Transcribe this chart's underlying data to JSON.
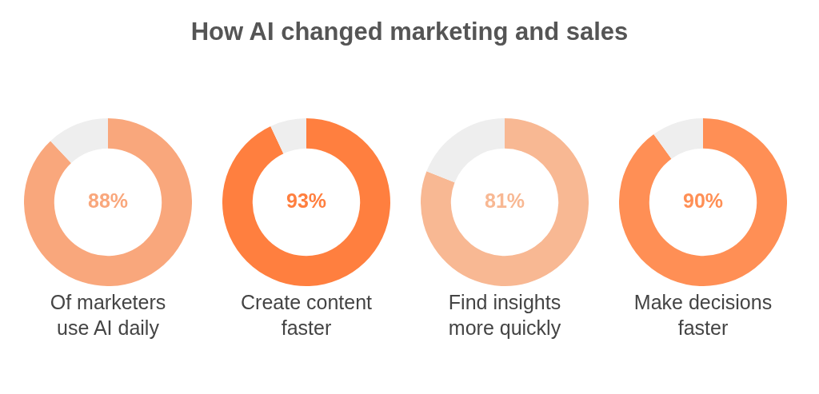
{
  "chart_data": [
    {
      "type": "donut",
      "title": "How AI changed marketing and sales",
      "categories": [
        null,
        null
      ],
      "values": [
        88,
        12
      ],
      "colors": [
        "#f9a77c",
        "#eeeeee"
      ],
      "value_labels": [
        "88%",
        null
      ],
      "xlabel": "Of marketers\nuse AI daily",
      "legend": false
    },
    {
      "type": "donut",
      "categories": [
        null,
        null
      ],
      "values": [
        93,
        7
      ],
      "colors": [
        "#ff7f3f",
        "#eeeeee"
      ],
      "value_labels": [
        "93%",
        null
      ],
      "xlabel": "Create content\nfaster",
      "legend": false
    },
    {
      "type": "donut",
      "categories": [
        null,
        null
      ],
      "values": [
        81,
        19
      ],
      "colors": [
        "#f8b893",
        "#eeeeee"
      ],
      "value_labels": [
        "81%",
        null
      ],
      "xlabel": "Find insights\nmore quickly",
      "legend": false
    },
    {
      "type": "donut",
      "categories": [
        null,
        null
      ],
      "values": [
        90,
        10
      ],
      "colors": [
        "#ff8f55",
        "#eeeeee"
      ],
      "value_labels": [
        "90%",
        null
      ],
      "xlabel": "Make decisions\nfaster",
      "legend": false
    }
  ]
}
